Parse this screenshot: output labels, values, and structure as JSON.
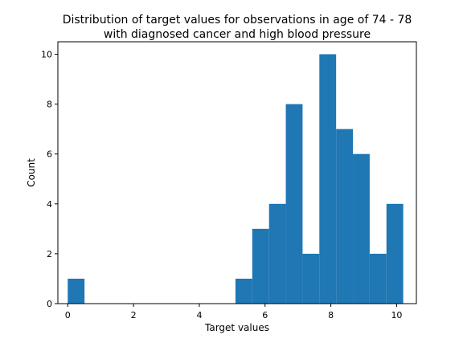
{
  "chart_data": {
    "type": "histogram",
    "title_lines": [
      "Distribution of target values for observations in age of 74 - 78",
      "with diagnosed cancer and high blood pressure"
    ],
    "xlabel": "Target values",
    "ylabel": "Count",
    "xlim": [
      -0.3,
      10.6
    ],
    "ylim": [
      0,
      10.5
    ],
    "xticks": [
      0,
      2,
      4,
      6,
      8,
      10
    ],
    "yticks": [
      0,
      2,
      4,
      6,
      8,
      10
    ],
    "bins": [
      {
        "x0": 0.0,
        "x1": 0.51,
        "count": 1
      },
      {
        "x0": 5.1,
        "x1": 5.61,
        "count": 1
      },
      {
        "x0": 5.61,
        "x1": 6.12,
        "count": 3
      },
      {
        "x0": 6.12,
        "x1": 6.63,
        "count": 4
      },
      {
        "x0": 6.63,
        "x1": 7.14,
        "count": 8
      },
      {
        "x0": 7.14,
        "x1": 7.65,
        "count": 2
      },
      {
        "x0": 7.65,
        "x1": 8.16,
        "count": 10
      },
      {
        "x0": 8.16,
        "x1": 8.67,
        "count": 7
      },
      {
        "x0": 8.67,
        "x1": 9.18,
        "count": 6
      },
      {
        "x0": 9.18,
        "x1": 9.69,
        "count": 2
      },
      {
        "x0": 9.69,
        "x1": 10.2,
        "count": 4
      }
    ],
    "bar_color": "#1f77b4",
    "grid": false,
    "legend": "none"
  }
}
